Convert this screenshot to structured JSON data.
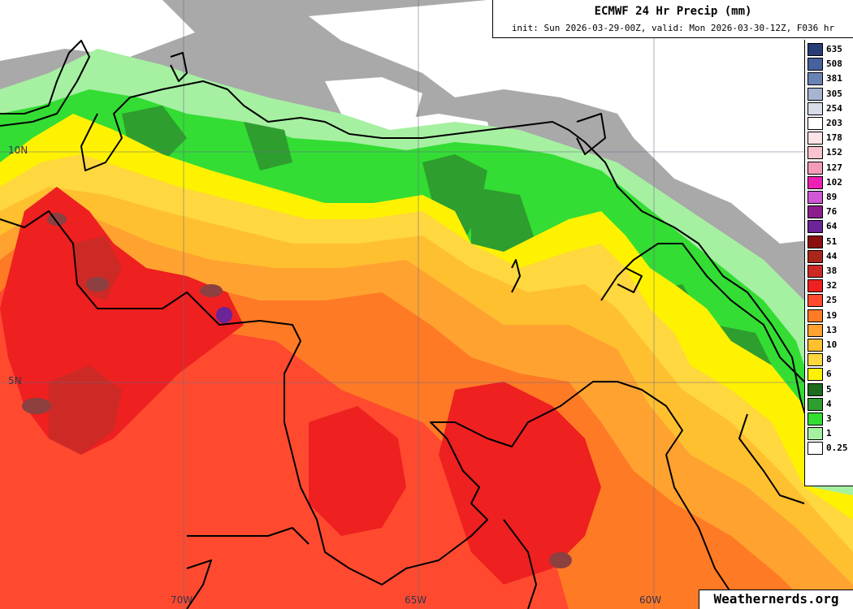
{
  "title": "ECMWF 24 Hr Precip (mm)",
  "subtitle": "init: Sun 2026-03-29-00Z, valid: Mon 2026-03-30-12Z, F036 hr",
  "brand": "Weathernerds.org",
  "grid_labels": {
    "lat": [
      "10N",
      "5N"
    ],
    "lon": [
      "70W",
      "65W",
      "60W"
    ]
  },
  "legend": [
    {
      "label": "635",
      "color": "#283c78"
    },
    {
      "label": "508",
      "color": "#46619b"
    },
    {
      "label": "381",
      "color": "#6b82b4"
    },
    {
      "label": "305",
      "color": "#a6b4d2"
    },
    {
      "label": "254",
      "color": "#d6dde9"
    },
    {
      "label": "203",
      "color": "#ffffff"
    },
    {
      "label": "178",
      "color": "#fde2e6"
    },
    {
      "label": "152",
      "color": "#f9c4cf"
    },
    {
      "label": "127",
      "color": "#f49bbd"
    },
    {
      "label": "102",
      "color": "#ee1fb5"
    },
    {
      "label": "89",
      "color": "#d057d6"
    },
    {
      "label": "76",
      "color": "#8a1f8d"
    },
    {
      "label": "64",
      "color": "#6c2499"
    },
    {
      "label": "51",
      "color": "#8c0f0f"
    },
    {
      "label": "44",
      "color": "#a9261b"
    },
    {
      "label": "38",
      "color": "#cd2a26"
    },
    {
      "label": "32",
      "color": "#ee2020"
    },
    {
      "label": "25",
      "color": "#ff4a2f"
    },
    {
      "label": "19",
      "color": "#ff7a25"
    },
    {
      "label": "13",
      "color": "#ffa230"
    },
    {
      "label": "10",
      "color": "#ffc030"
    },
    {
      "label": "8",
      "color": "#ffd73f"
    },
    {
      "label": "6",
      "color": "#fff200"
    },
    {
      "label": "5",
      "color": "#1d6b1d"
    },
    {
      "label": "4",
      "color": "#2e9e2e"
    },
    {
      "label": "3",
      "color": "#33dd33"
    },
    {
      "label": "1",
      "color": "#a6f0a2"
    },
    {
      "label": "0.25",
      "color": "#ffffff"
    }
  ],
  "colors": {
    "gray": "#a9a9a9",
    "white": "#ffffff",
    "light_green": "#a6f0a2",
    "green": "#33dd33",
    "dark_green": "#2e9e2e",
    "yellow": "#fff200",
    "gold": "#ffd73f",
    "light_orange": "#ffc030",
    "orange": "#ffa230",
    "dark_orange": "#ff7a25",
    "red_orange": "#ff4a2f",
    "red": "#ee2020",
    "dark_red": "#cd2a26",
    "brown": "#8c4040",
    "purple": "#6c2499",
    "boundary": "#000000",
    "gridline": "#6a6a8a"
  }
}
